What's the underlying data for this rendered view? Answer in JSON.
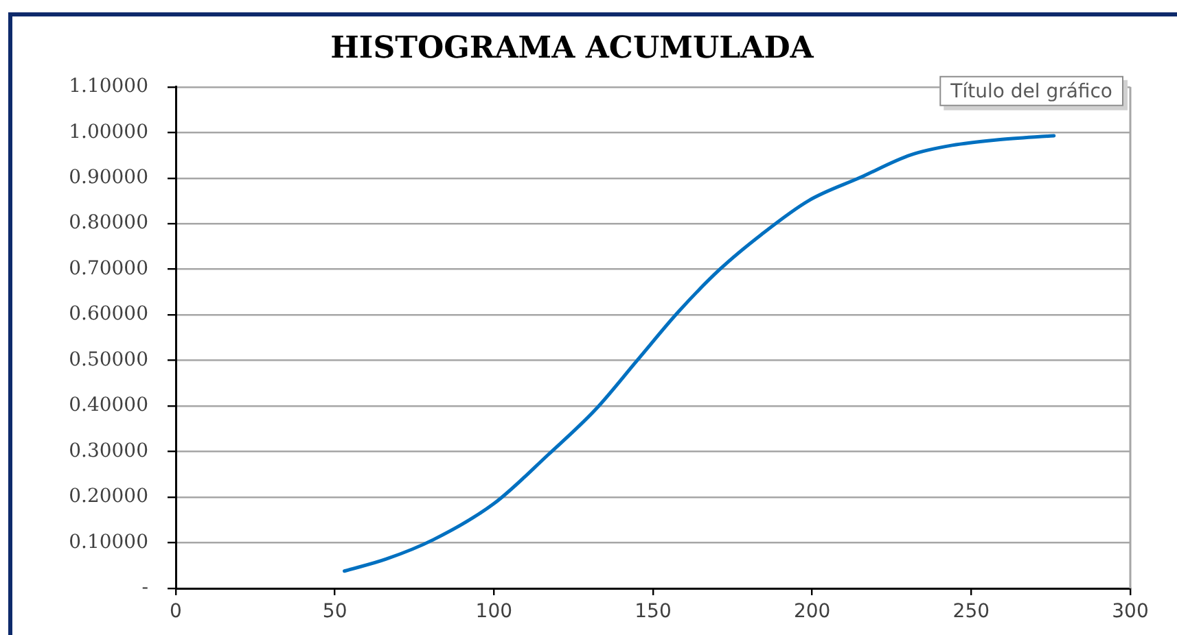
{
  "chart_data": {
    "type": "line",
    "title": "HISTOGRAMA ACUMULADA",
    "x": [
      53,
      66,
      81,
      100,
      117,
      132,
      145,
      158,
      171,
      184,
      199,
      215,
      231,
      244,
      258,
      276
    ],
    "values": [
      0.038,
      0.064,
      0.107,
      0.186,
      0.293,
      0.393,
      0.5,
      0.607,
      0.7,
      0.776,
      0.851,
      0.901,
      0.951,
      0.972,
      0.984,
      0.993
    ],
    "color": "#0070c0",
    "xlim": [
      0,
      300
    ],
    "xticks": [
      0,
      50,
      100,
      150,
      200,
      250,
      300
    ],
    "ylim": [
      0,
      1.1
    ],
    "yticks": [
      {
        "value": 0,
        "label": "-"
      },
      {
        "value": 0.1,
        "label": "0.10000"
      },
      {
        "value": 0.2,
        "label": "0.20000"
      },
      {
        "value": 0.3,
        "label": "0.30000"
      },
      {
        "value": 0.4,
        "label": "0.40000"
      },
      {
        "value": 0.5,
        "label": "0.50000"
      },
      {
        "value": 0.6,
        "label": "0.60000"
      },
      {
        "value": 0.7,
        "label": "0.70000"
      },
      {
        "value": 0.8,
        "label": "0.80000"
      },
      {
        "value": 0.9,
        "label": "0.90000"
      },
      {
        "value": 1.0,
        "label": "1.00000"
      },
      {
        "value": 1.1,
        "label": "1.10000"
      }
    ],
    "grid": "y",
    "annotations": [
      "Título del gráfico"
    ]
  }
}
